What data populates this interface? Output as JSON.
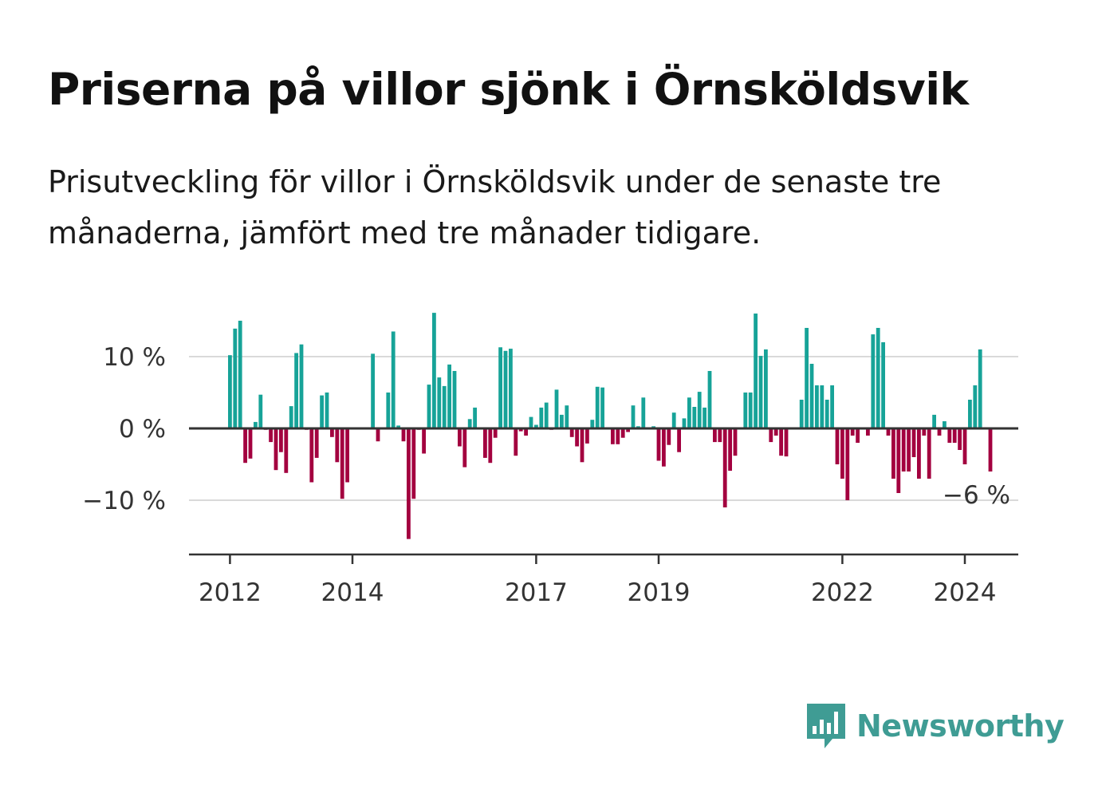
{
  "title": "Priserna på villor sjönk i Örnsköldsvik",
  "subtitle": "Prisutveckling för villor i Örnsköldsvik under de senaste tre månaderna, jämfört med tre månader tidigare.",
  "brand": {
    "name": "Newsworthy",
    "icon": "newsworthy-chart-bubble-icon",
    "color": "#3f9c94"
  },
  "chart_data": {
    "type": "bar",
    "title": "",
    "xlabel": "",
    "ylabel": "",
    "ylim": [
      -17.5,
      16.5
    ],
    "yticks": [
      10,
      0,
      -10
    ],
    "ytick_labels": [
      "10 %",
      "0 %",
      "−10 %"
    ],
    "grid": true,
    "xtick_labels": [
      {
        "label": "2012",
        "year": 2012
      },
      {
        "label": "2014",
        "year": 2014
      },
      {
        "label": "2017",
        "year": 2017
      },
      {
        "label": "2019",
        "year": 2019
      },
      {
        "label": "2022",
        "year": 2022
      },
      {
        "label": "2024",
        "year": 2024
      }
    ],
    "start_year": 2012,
    "colors": {
      "positive": "#17a398",
      "negative": "#a3003f"
    },
    "last_value_label": "−6 %",
    "series": [
      {
        "values": [
          10.2,
          13.9,
          15,
          -4.8,
          -4.2,
          0.9,
          4.7,
          -0.2,
          -1.9,
          -5.8,
          -3.3,
          -6.2,
          3.1,
          10.5,
          11.7,
          -0.2,
          -7.5,
          -4.1,
          4.6,
          5,
          -1.2,
          -4.7,
          -9.8,
          -7.5,
          -0.1,
          -0.1,
          -0.1,
          0.1,
          10.4,
          -1.8,
          -0.1,
          5,
          13.5,
          0.4,
          -1.8,
          -15.4,
          -9.8,
          -0.2,
          -3.5,
          6.1,
          16.1,
          7.1,
          5.9,
          8.9,
          8,
          -2.5,
          -5.4,
          1.3,
          2.9,
          -0.1,
          -4.1,
          -4.8,
          -1.3,
          11.3,
          10.8,
          11.1,
          -3.8,
          -0.4,
          -1,
          1.6,
          0.5,
          2.9,
          3.6,
          -0.2,
          5.4,
          1.9,
          3.2,
          -1.2,
          -2.5,
          -4.7,
          -2.1,
          1.2,
          5.8,
          5.7,
          -0.1,
          -2.2,
          -2.2,
          -1.3,
          -0.5,
          3.2,
          0.3,
          4.3,
          -0.1,
          0.3,
          -4.5,
          -5.3,
          -2.3,
          2.2,
          -3.3,
          1.4,
          4.3,
          3,
          5.1,
          2.9,
          8,
          -1.9,
          -1.9,
          -11,
          -5.9,
          -3.8,
          -0.1,
          5,
          5,
          16,
          10.1,
          11,
          -1.9,
          -1,
          -3.8,
          -3.9,
          -0.1,
          -0.1,
          4,
          14,
          9,
          6,
          6,
          4,
          6,
          -5,
          -7,
          -10,
          -1,
          -2,
          -0.1,
          -1,
          13.1,
          14,
          12,
          -1,
          -7,
          -9,
          -6,
          -6,
          -4,
          -7,
          -1,
          -7,
          1.9,
          -1,
          1,
          -2,
          -2,
          -3,
          -5,
          4,
          6,
          11,
          -0.1,
          -6
        ]
      }
    ]
  }
}
